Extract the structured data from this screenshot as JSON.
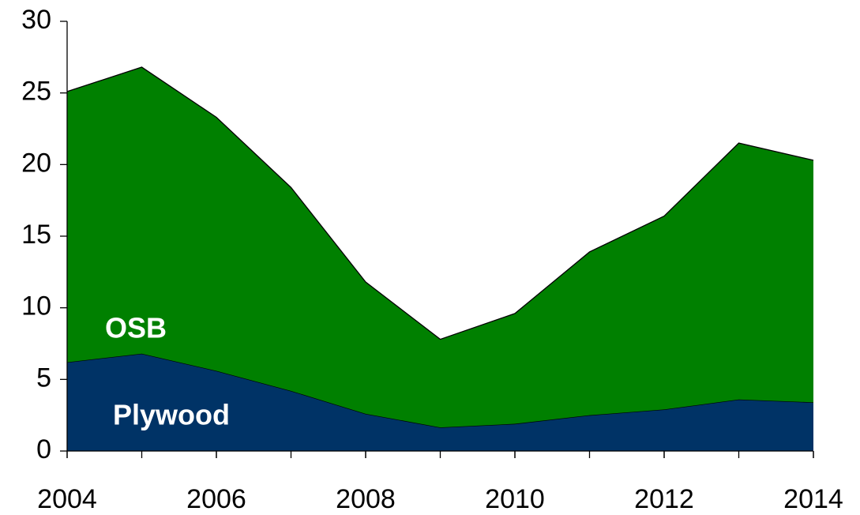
{
  "chart_data": {
    "type": "stacked_area",
    "x": [
      2004,
      2005,
      2006,
      2007,
      2008,
      2009,
      2010,
      2011,
      2012,
      2013,
      2014
    ],
    "series": [
      {
        "name": "Plywood",
        "color": "#003366",
        "values": [
          6.2,
          6.8,
          5.6,
          4.2,
          2.6,
          1.65,
          1.9,
          2.5,
          2.9,
          3.6,
          3.4
        ]
      },
      {
        "name": "OSB",
        "color": "#008000",
        "values": [
          18.9,
          20.0,
          17.7,
          14.2,
          9.2,
          6.15,
          7.7,
          11.4,
          13.5,
          17.9,
          16.9
        ]
      }
    ],
    "xlim": [
      2004,
      2014
    ],
    "xticks": [
      2004,
      2006,
      2008,
      2010,
      2012,
      2014
    ],
    "ylim": [
      0,
      30
    ],
    "yticks": [
      0,
      5,
      10,
      15,
      20,
      25,
      30
    ],
    "grid": false
  }
}
